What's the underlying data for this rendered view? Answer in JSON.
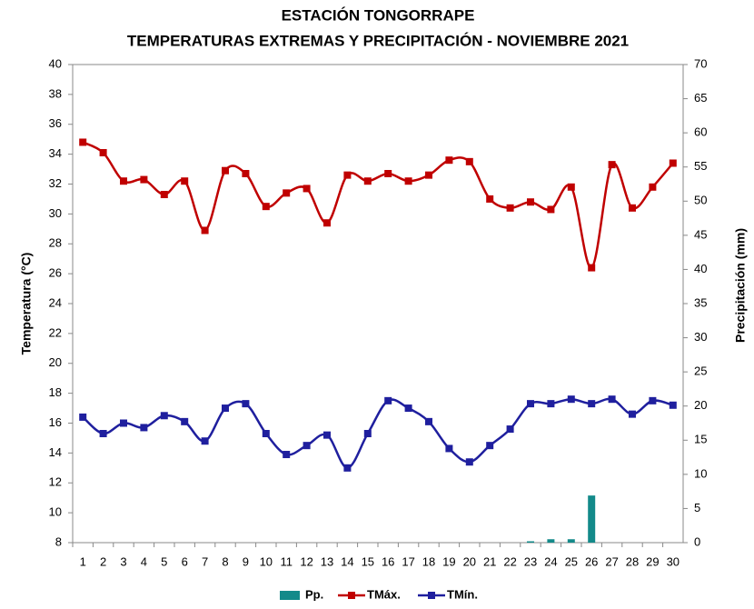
{
  "chart_data": {
    "type": "combo",
    "title": "ESTACIÓN TONGORRAPE",
    "subtitle": "TEMPERATURAS  EXTREMAS Y PRECIPITACIÓN - NOVIEMBRE 2021",
    "y_label": "Temperatura (°C)",
    "y2_label": "Precipitación (mm)",
    "categories": [
      "1",
      "2",
      "3",
      "4",
      "5",
      "6",
      "7",
      "8",
      "9",
      "10",
      "11",
      "12",
      "13",
      "14",
      "15",
      "16",
      "17",
      "18",
      "19",
      "20",
      "21",
      "22",
      "23",
      "24",
      "25",
      "26",
      "27",
      "28",
      "29",
      "30"
    ],
    "series": [
      {
        "name": "Pp.",
        "type": "bar",
        "axis": "y2",
        "color": "#138a8a",
        "values": [
          0,
          0,
          0,
          0,
          0,
          0,
          0,
          0,
          0,
          0,
          0,
          0,
          0,
          0,
          0,
          0,
          0,
          0,
          0,
          0,
          0,
          0,
          0.2,
          0.5,
          0.5,
          6.9,
          0,
          0,
          0,
          0
        ]
      },
      {
        "name": "TMáx.",
        "type": "line",
        "color": "#c00000",
        "values": [
          34.8,
          34.1,
          32.2,
          32.3,
          31.3,
          32.2,
          28.9,
          32.9,
          32.7,
          30.5,
          31.4,
          31.7,
          29.4,
          32.6,
          32.2,
          32.7,
          32.2,
          32.6,
          33.6,
          33.5,
          31.0,
          30.4,
          30.8,
          30.3,
          31.8,
          26.4,
          33.3,
          30.4,
          31.8,
          33.4
        ]
      },
      {
        "name": "TMín.",
        "type": "line",
        "color": "#1f1f9e",
        "values": [
          16.4,
          15.3,
          16.0,
          15.7,
          16.5,
          16.1,
          14.8,
          17.0,
          17.3,
          15.3,
          13.9,
          14.5,
          15.2,
          13.0,
          15.3,
          17.5,
          17.0,
          16.1,
          14.3,
          13.4,
          14.5,
          15.6,
          17.3,
          17.3,
          17.6,
          17.3,
          17.6,
          16.6,
          17.5,
          17.2
        ]
      }
    ],
    "ylim": [
      8,
      40
    ],
    "yticks": [
      8,
      10,
      12,
      14,
      16,
      18,
      20,
      22,
      24,
      26,
      28,
      30,
      32,
      34,
      36,
      38,
      40
    ],
    "y2lim": [
      0,
      70
    ],
    "y2ticks": [
      0,
      5,
      10,
      15,
      20,
      25,
      30,
      35,
      40,
      45,
      50,
      55,
      60,
      65,
      70
    ],
    "grid": false,
    "legend": "bottom"
  }
}
